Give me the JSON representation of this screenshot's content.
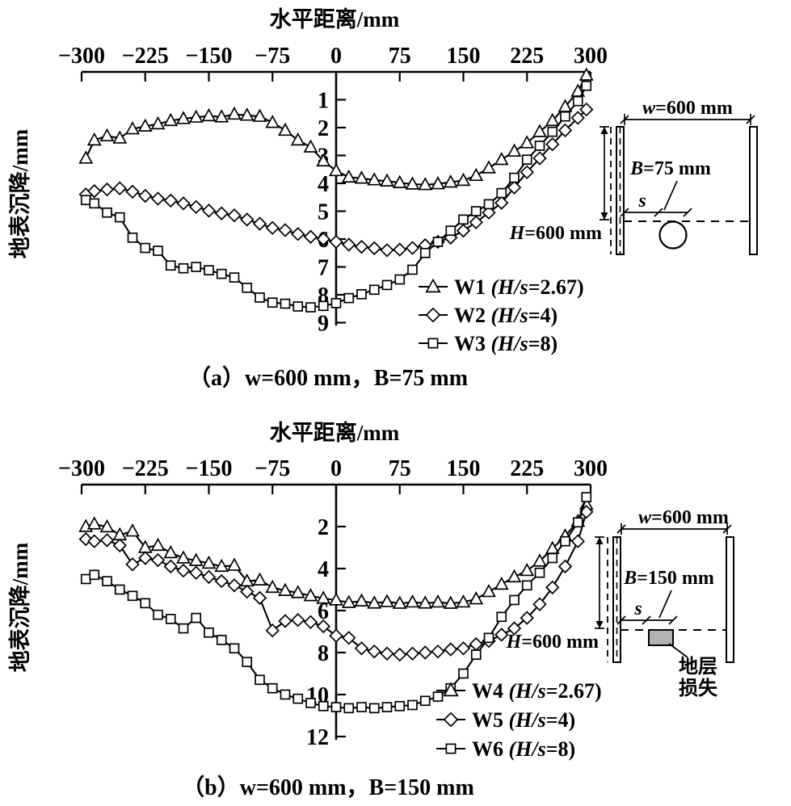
{
  "figure": {
    "background": "#ffffff",
    "ink_color": "#000000",
    "loss_fill": "#b3b3b3"
  },
  "chart_data": [
    {
      "type": "line",
      "panel": "a",
      "title": "水平距离/mm",
      "ylabel": "地表沉降/mm",
      "caption": "（a）w=600 mm，B=75 mm",
      "xlim": [
        -300,
        300
      ],
      "ylim": [
        0,
        9.2
      ],
      "y_inverted": true,
      "grid": false,
      "legend_position": "lower-right-inside",
      "x_ticks": [
        -300,
        -225,
        -150,
        -75,
        0,
        75,
        150,
        225,
        300
      ],
      "x_tick_labels": [
        "−300",
        "−225",
        "−150",
        "−75",
        "0",
        "75",
        "150",
        "225",
        "300"
      ],
      "y_ticks": [
        1,
        2,
        3,
        4,
        5,
        6,
        7,
        8,
        9
      ],
      "x": [
        -295,
        -285,
        -270,
        -255,
        -240,
        -225,
        -210,
        -195,
        -180,
        -165,
        -150,
        -135,
        -120,
        -105,
        -90,
        -75,
        -60,
        -45,
        -30,
        -15,
        0,
        15,
        30,
        45,
        60,
        75,
        90,
        105,
        120,
        135,
        150,
        165,
        180,
        195,
        210,
        225,
        240,
        255,
        270,
        285,
        295
      ],
      "series": [
        {
          "name": "W1 (H/s=2.67)",
          "id": "W1",
          "ratio_italic": "(H/s",
          "ratio_rest": "=2.67)",
          "marker": "triangle",
          "values": [
            3.1,
            2.45,
            2.3,
            2.38,
            2.05,
            1.95,
            1.87,
            1.75,
            1.68,
            1.63,
            1.58,
            1.62,
            1.52,
            1.56,
            1.6,
            1.82,
            2.1,
            2.45,
            2.7,
            3.2,
            3.55,
            3.78,
            3.82,
            3.88,
            3.92,
            3.98,
            4.03,
            4.05,
            4.02,
            3.96,
            3.9,
            3.72,
            3.45,
            3.15,
            2.85,
            2.55,
            2.15,
            1.75,
            1.25,
            0.7,
            0.12
          ]
        },
        {
          "name": "W2 (H/s=4)",
          "id": "W2",
          "ratio_italic": "(H/s",
          "ratio_rest": "=4)",
          "marker": "diamond",
          "values": [
            4.4,
            4.28,
            4.22,
            4.18,
            4.3,
            4.45,
            4.55,
            4.62,
            4.72,
            4.85,
            4.98,
            5.08,
            5.15,
            5.3,
            5.45,
            5.6,
            5.68,
            5.82,
            5.92,
            6.0,
            6.1,
            6.2,
            6.28,
            6.33,
            6.4,
            6.38,
            6.32,
            6.22,
            6.1,
            5.95,
            5.7,
            5.4,
            5.05,
            4.7,
            4.15,
            3.6,
            3.1,
            2.6,
            2.1,
            1.65,
            1.35
          ]
        },
        {
          "name": "W3 (H/s=8)",
          "id": "W3",
          "ratio_italic": "(H/s",
          "ratio_rest": "=8)",
          "marker": "square",
          "values": [
            4.6,
            4.72,
            5.05,
            5.22,
            5.95,
            6.32,
            6.42,
            6.95,
            7.05,
            7.0,
            7.12,
            7.25,
            7.38,
            7.75,
            8.1,
            8.28,
            8.32,
            8.42,
            8.45,
            8.4,
            8.3,
            8.12,
            7.98,
            7.82,
            7.65,
            7.45,
            7.1,
            6.5,
            6.1,
            5.7,
            5.3,
            5.0,
            4.75,
            4.35,
            3.8,
            3.15,
            2.65,
            2.15,
            1.6,
            1.05,
            0.5
          ]
        }
      ],
      "schematic": {
        "w_var": "w",
        "w_rest": "=600 mm",
        "b_var": "B",
        "b_rest": "=75 mm",
        "s_var": "s",
        "h_var": "H",
        "h_rest": "=600 mm",
        "loss_shape": "circle"
      }
    },
    {
      "type": "line",
      "panel": "b",
      "title": "水平距离/mm",
      "ylabel": "地表沉降/mm",
      "caption": "（b）w=600 mm，B=150 mm",
      "xlim": [
        -300,
        300
      ],
      "ylim": [
        0,
        12.3
      ],
      "y_inverted": true,
      "grid": false,
      "legend_position": "lower-right-inside",
      "x_ticks": [
        -300,
        -225,
        -150,
        -75,
        0,
        75,
        150,
        225,
        300
      ],
      "x_tick_labels": [
        "−300",
        "−225",
        "−150",
        "−75",
        "0",
        "75",
        "150",
        "225",
        "300"
      ],
      "y_ticks": [
        2,
        4,
        6,
        8,
        10,
        12
      ],
      "x": [
        -295,
        -285,
        -270,
        -255,
        -240,
        -225,
        -210,
        -195,
        -180,
        -165,
        -150,
        -135,
        -120,
        -105,
        -90,
        -75,
        -60,
        -45,
        -30,
        -15,
        0,
        15,
        30,
        45,
        60,
        75,
        90,
        105,
        120,
        135,
        150,
        165,
        180,
        195,
        210,
        225,
        240,
        255,
        270,
        285,
        295
      ],
      "series": [
        {
          "name": "W4 (H/s=2.67)",
          "id": "W4",
          "ratio_italic": "(H/s",
          "ratio_rest": "=2.67)",
          "marker": "triangle",
          "values": [
            2.0,
            1.88,
            2.02,
            2.4,
            2.22,
            3.0,
            2.9,
            3.25,
            3.5,
            3.62,
            3.75,
            3.9,
            3.85,
            4.6,
            4.55,
            4.9,
            5.05,
            5.15,
            5.3,
            5.42,
            5.5,
            5.62,
            5.55,
            5.65,
            5.58,
            5.66,
            5.6,
            5.65,
            5.6,
            5.66,
            5.6,
            5.45,
            5.1,
            4.75,
            4.4,
            4.1,
            3.65,
            3.05,
            2.45,
            1.75,
            0.95
          ]
        },
        {
          "name": "W5 (H/s=4)",
          "id": "W5",
          "ratio_italic": "(H/s",
          "ratio_rest": "=4)",
          "marker": "diamond",
          "values": [
            2.6,
            2.7,
            2.65,
            2.9,
            3.8,
            3.5,
            3.6,
            3.9,
            4.1,
            4.2,
            4.4,
            4.6,
            4.8,
            5.1,
            5.4,
            6.95,
            6.5,
            6.45,
            6.55,
            6.75,
            7.2,
            7.3,
            7.8,
            7.95,
            8.05,
            8.1,
            8.05,
            8.0,
            7.95,
            7.85,
            7.8,
            7.6,
            7.45,
            7.15,
            6.85,
            6.35,
            5.7,
            4.9,
            3.9,
            2.7,
            1.3
          ]
        },
        {
          "name": "W6 (H/s=8)",
          "id": "W6",
          "ratio_italic": "(H/s",
          "ratio_rest": "=8)",
          "marker": "square",
          "values": [
            4.5,
            4.3,
            4.6,
            5.0,
            5.3,
            5.65,
            6.2,
            6.4,
            6.85,
            6.35,
            7.05,
            7.4,
            7.8,
            8.45,
            9.3,
            9.7,
            10.0,
            10.2,
            10.4,
            10.55,
            10.6,
            10.65,
            10.6,
            10.65,
            10.6,
            10.55,
            10.5,
            10.3,
            10.1,
            9.7,
            9.0,
            8.1,
            7.3,
            6.3,
            5.5,
            4.8,
            4.2,
            3.5,
            2.7,
            1.8,
            0.6
          ]
        }
      ],
      "schematic": {
        "w_var": "w",
        "w_rest": "=600 mm",
        "b_var": "B",
        "b_rest": "=150 mm",
        "s_var": "s",
        "h_var": "H",
        "h_rest": "=600 mm",
        "loss_shape": "rect",
        "loss_label_lines": [
          "地层",
          "损失"
        ]
      }
    }
  ]
}
